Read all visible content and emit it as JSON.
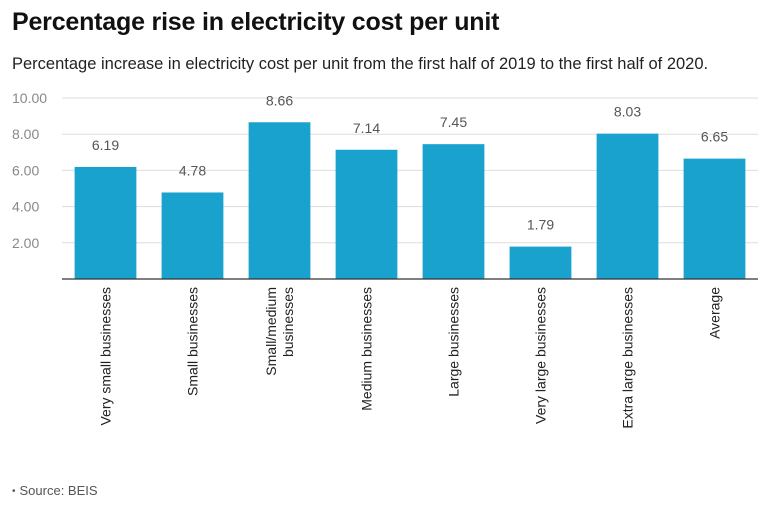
{
  "title": "Percentage rise in electricity cost per unit",
  "subtitle": "Percentage increase in electricity cost per unit from the first half of 2019 to the first half of 2020.",
  "source": "Source: BEIS",
  "colors": {
    "bar": "#1aa2cf",
    "grid": "#dddddd",
    "axis": "#333333",
    "tick_text": "#888888",
    "label_text": "#555555"
  },
  "chart_data": {
    "type": "bar",
    "categories": [
      "Very small businesses",
      "Small businesses",
      "Small/medium businesses",
      "Medium businesses",
      "Large businesses",
      "Very large businesses",
      "Extra large businesses",
      "Average"
    ],
    "category_lines": [
      [
        "Very small businesses"
      ],
      [
        "Small businesses"
      ],
      [
        "Small/medium",
        "businesses"
      ],
      [
        "Medium businesses"
      ],
      [
        "Large businesses"
      ],
      [
        "Very large businesses"
      ],
      [
        "Extra large businesses"
      ],
      [
        "Average"
      ]
    ],
    "values": [
      6.19,
      4.78,
      8.66,
      7.14,
      7.45,
      1.79,
      8.03,
      6.65
    ],
    "value_labels": [
      "6.19",
      "4.78",
      "8.66",
      "7.14",
      "7.45",
      "1.79",
      "8.03",
      "6.65"
    ],
    "y_ticks": [
      2,
      4,
      6,
      8,
      10
    ],
    "y_tick_labels": [
      "2.00",
      "4.00",
      "6.00",
      "8.00",
      "10.00"
    ],
    "ylim": [
      0,
      10
    ],
    "grid": true,
    "legend": false
  }
}
